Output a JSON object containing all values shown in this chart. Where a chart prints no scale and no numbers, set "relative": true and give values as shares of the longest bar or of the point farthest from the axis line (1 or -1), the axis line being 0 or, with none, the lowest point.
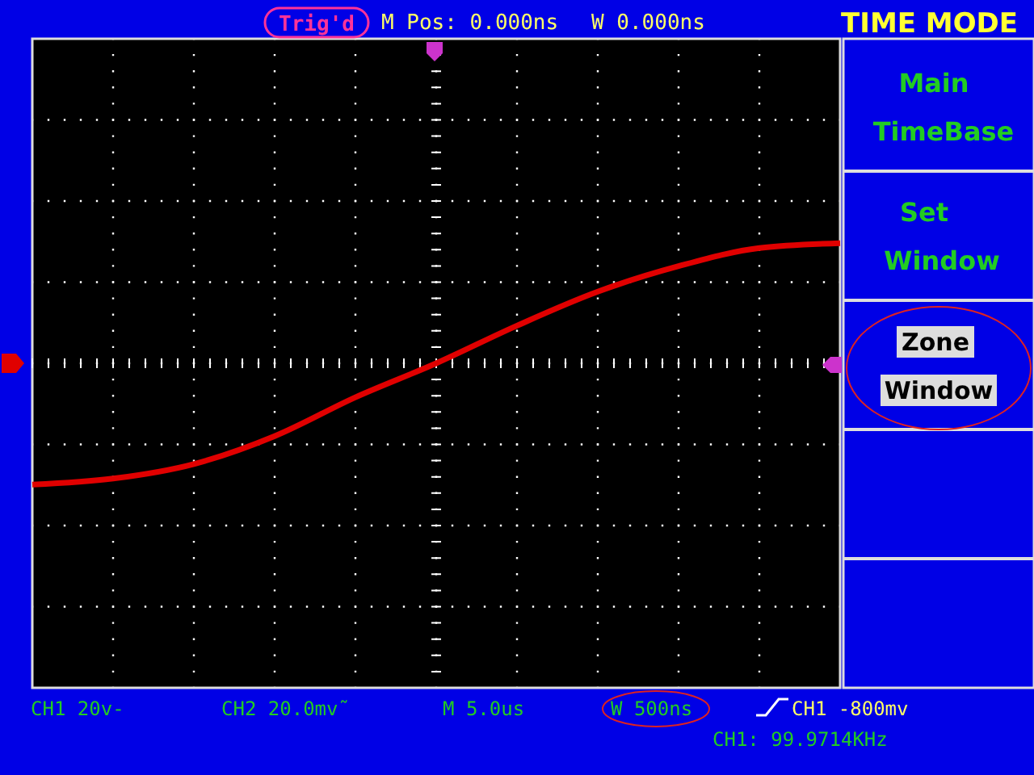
{
  "chart_data": {
    "type": "line",
    "relative": true,
    "categories": [
      null,
      null,
      null,
      null,
      null,
      null,
      null,
      null,
      null,
      null,
      null
    ],
    "series": [
      {
        "color": "#e00000",
        "values": [
          -1,
          -0.95,
          -0.83,
          -0.6,
          -0.28,
          0,
          0.31,
          0.59,
          0.8,
          0.95,
          0.99
        ]
      }
    ],
    "grid": "x",
    "marker": "none",
    "line_style": "solid",
    "title": "TIME MODE",
    "annotations": [
      "Trig'd",
      "M Pos: 0.000ns",
      "W 0.000ns",
      "Main",
      "TimeBase",
      "Set",
      "Window",
      "Zone",
      "Window",
      "CH1 20v-",
      "CH2 20.0mv˜",
      "M 5.0us",
      "W 500ns",
      "CH1 -800mv",
      "CH1: 99.9714KHz"
    ]
  }
}
